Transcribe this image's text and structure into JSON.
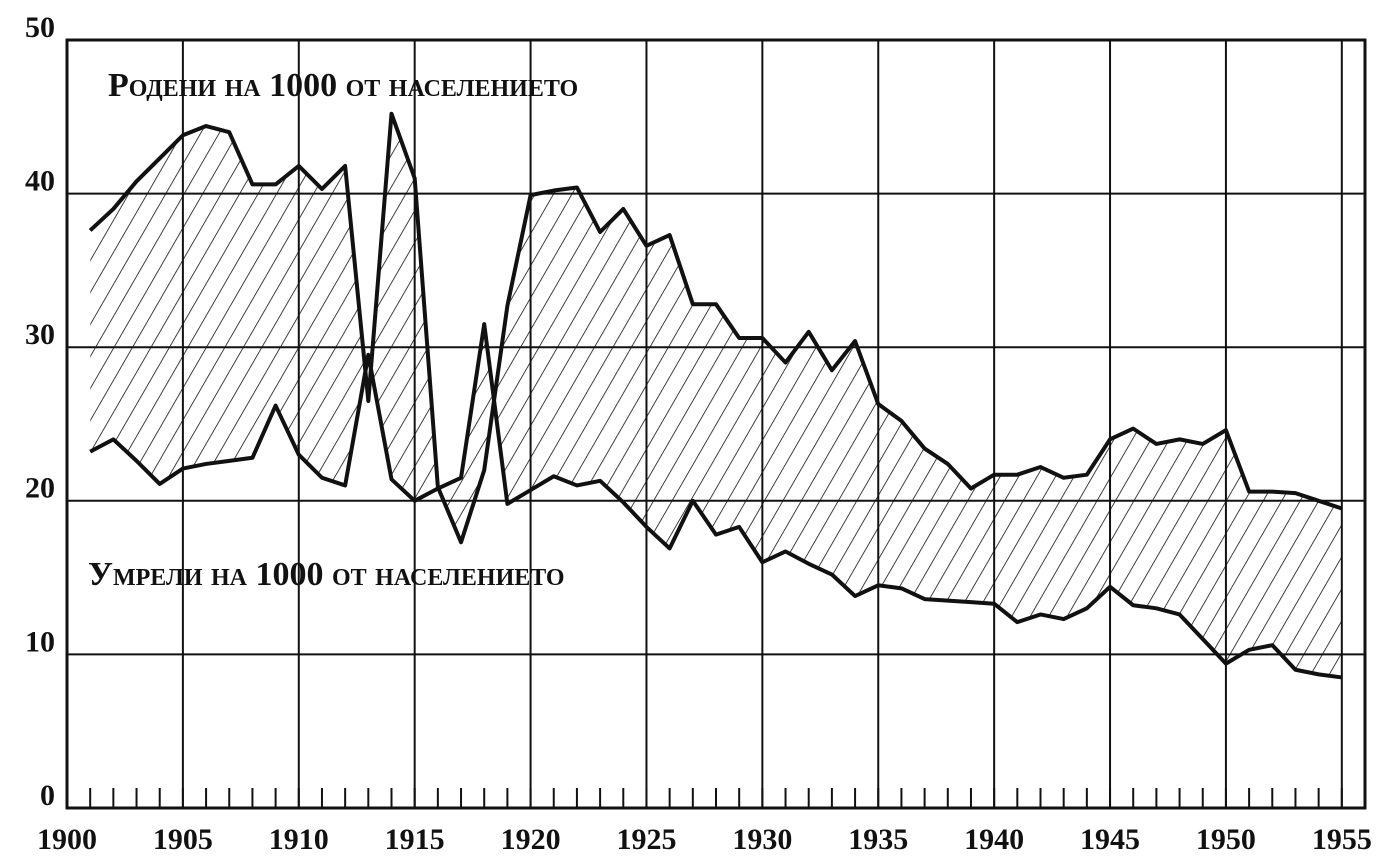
{
  "chart_data": {
    "type": "line",
    "annotations": [
      "Родени на 1000 от населението",
      "Умрели на 1000 от населението"
    ],
    "x": [
      1901,
      1902,
      1903,
      1904,
      1905,
      1906,
      1907,
      1908,
      1909,
      1910,
      1911,
      1912,
      1913,
      1914,
      1915,
      1916,
      1917,
      1918,
      1919,
      1920,
      1921,
      1922,
      1923,
      1924,
      1925,
      1926,
      1927,
      1928,
      1929,
      1930,
      1931,
      1932,
      1933,
      1934,
      1935,
      1936,
      1937,
      1938,
      1939,
      1940,
      1941,
      1942,
      1943,
      1944,
      1945,
      1946,
      1947,
      1948,
      1949,
      1950,
      1951,
      1952,
      1953,
      1954,
      1955
    ],
    "series": [
      {
        "color": "#111111",
        "values": [
          37.6,
          39.0,
          40.8,
          42.3,
          43.8,
          44.4,
          44.0,
          40.6,
          40.6,
          41.8,
          40.3,
          41.8,
          26.5,
          45.2,
          41.0,
          20.9,
          17.3,
          22.0,
          32.7,
          39.9,
          40.2,
          40.4,
          37.5,
          39.0,
          36.6,
          37.3,
          32.8,
          32.8,
          30.6,
          30.6,
          29.0,
          31.0,
          28.5,
          30.4,
          26.3,
          25.2,
          23.4,
          22.4,
          20.8,
          21.7,
          21.7,
          22.2,
          21.5,
          21.7,
          24.0,
          24.7,
          23.7,
          24.0,
          23.7,
          24.6,
          20.6,
          20.6,
          20.5,
          20.0,
          19.5
        ]
      },
      {
        "color": "#111111",
        "values": [
          23.2,
          24.0,
          22.6,
          21.1,
          22.1,
          22.4,
          22.6,
          22.8,
          26.2,
          23.0,
          21.5,
          21.0,
          29.5,
          21.4,
          20.0,
          20.8,
          21.5,
          31.5,
          19.8,
          20.7,
          21.6,
          21.0,
          21.3,
          19.9,
          18.3,
          16.9,
          20.0,
          17.8,
          18.3,
          16.0,
          16.7,
          15.9,
          15.2,
          13.8,
          14.5,
          14.3,
          13.6,
          13.5,
          13.4,
          13.3,
          12.1,
          12.6,
          12.3,
          13.0,
          14.4,
          13.2,
          13.0,
          12.6,
          11.0,
          9.4,
          10.3,
          10.6,
          9.0,
          8.7,
          8.5
        ]
      }
    ],
    "xlim": [
      1900,
      1956
    ],
    "xticks": [
      1900,
      1905,
      1910,
      1915,
      1920,
      1925,
      1930,
      1935,
      1940,
      1945,
      1950,
      1955
    ],
    "ylim": [
      0,
      50
    ],
    "yticks": [
      0,
      10,
      20,
      30,
      40,
      50
    ],
    "grid": true
  }
}
